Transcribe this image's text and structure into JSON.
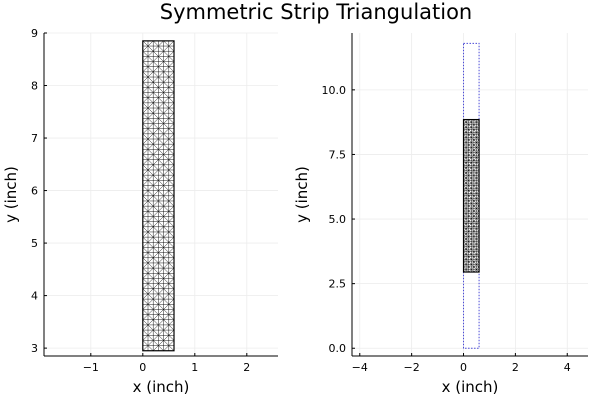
{
  "title": "Symmetric Strip Triangulation",
  "colors": {
    "mesh": "#000000",
    "outline": "#4b4bd6",
    "grid": "#ececec",
    "axis": "#000000"
  },
  "chart_data": [
    {
      "type": "mesh",
      "xlabel": "x (inch)",
      "ylabel": "y (inch)",
      "xlim": [
        -1.9,
        2.6
      ],
      "ylim": [
        2.85,
        9.0
      ],
      "xticks": [
        -1,
        0,
        1,
        2
      ],
      "xtick_labels": [
        "−1",
        "0",
        "1",
        "2"
      ],
      "yticks": [
        3,
        4,
        5,
        6,
        7,
        8,
        9
      ],
      "ytick_labels": [
        "3",
        "4",
        "5",
        "6",
        "7",
        "8",
        "9"
      ],
      "grid": true,
      "strip": {
        "x": [
          0.0,
          0.6
        ],
        "y": [
          2.95,
          8.85
        ],
        "nx": 6,
        "ny": 60
      }
    },
    {
      "type": "mesh",
      "xlabel": "x (inch)",
      "ylabel": "y (inch)",
      "xlim": [
        -4.3,
        4.8
      ],
      "ylim": [
        -0.3,
        12.2
      ],
      "xticks": [
        -4,
        -2,
        0,
        2,
        4
      ],
      "xtick_labels": [
        "−4",
        "−2",
        "0",
        "2",
        "4"
      ],
      "yticks": [
        0.0,
        2.5,
        5.0,
        7.5,
        10.0
      ],
      "ytick_labels": [
        "0.0",
        "2.5",
        "5.0",
        "7.5",
        "10.0"
      ],
      "grid": true,
      "strip": {
        "x": [
          0.0,
          0.6
        ],
        "y": [
          2.95,
          8.85
        ],
        "nx": 6,
        "ny": 60
      },
      "outline": {
        "x": [
          0.0,
          0.6
        ],
        "y": [
          0.0,
          11.8
        ]
      }
    }
  ]
}
